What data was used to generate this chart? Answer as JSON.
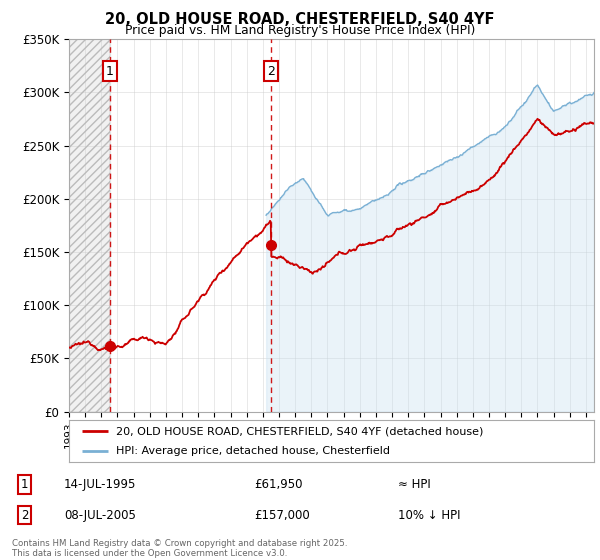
{
  "title1": "20, OLD HOUSE ROAD, CHESTERFIELD, S40 4YF",
  "title2": "Price paid vs. HM Land Registry's House Price Index (HPI)",
  "ylim": [
    0,
    350000
  ],
  "yticks": [
    0,
    50000,
    100000,
    150000,
    200000,
    250000,
    300000,
    350000
  ],
  "ytick_labels": [
    "£0",
    "£50K",
    "£100K",
    "£150K",
    "£200K",
    "£250K",
    "£300K",
    "£350K"
  ],
  "t1_year": 1995.538,
  "t2_year": 2005.521,
  "price1": 61950,
  "price2": 157000,
  "legend1": "20, OLD HOUSE ROAD, CHESTERFIELD, S40 4YF (detached house)",
  "legend2": "HPI: Average price, detached house, Chesterfield",
  "footer": "Contains HM Land Registry data © Crown copyright and database right 2025.\nThis data is licensed under the Open Government Licence v3.0.",
  "red_color": "#cc0000",
  "blue_color": "#7ab0d4",
  "blue_fill": "#c5dff0",
  "bg_color": "#ffffff",
  "grid_color": "#cccccc",
  "xmin": 1993,
  "xmax": 2025.5,
  "hatch_region_end": 1995.538
}
